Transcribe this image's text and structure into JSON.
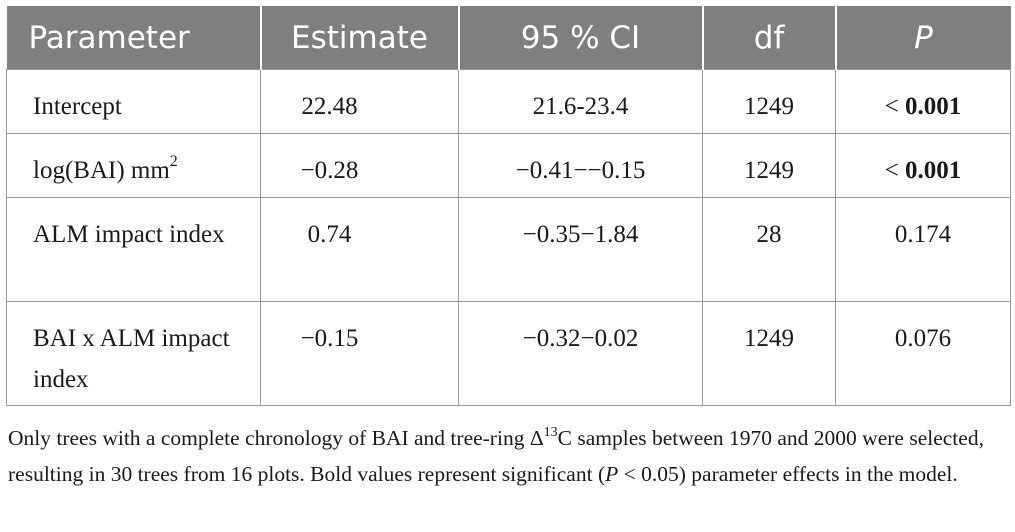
{
  "table": {
    "headers": [
      "Parameter",
      "Estimate",
      "95 % CI",
      "df",
      "P"
    ],
    "rows": [
      {
        "parameter": "Intercept",
        "estimate": "22.48",
        "ci": "21.6‐23.4",
        "df": "1249",
        "p_prefix": "< ",
        "p_value": "0.001",
        "p_bold": true
      },
      {
        "parameter_main": "log(BAI) mm",
        "parameter_sup": "2",
        "estimate": "−0.28",
        "ci": "−0.41−−0.15",
        "df": "1249",
        "p_prefix": "< ",
        "p_value": "0.001",
        "p_bold": true
      },
      {
        "parameter": "ALM impact index",
        "estimate": "0.74",
        "ci": "−0.35−1.84",
        "df": "28",
        "p_value": "0.174",
        "p_bold": false
      },
      {
        "parameter": "BAI x ALM impact index",
        "estimate": "−0.15",
        "ci": "−0.32−0.02",
        "df": "1249",
        "p_value": "0.076",
        "p_bold": false
      }
    ]
  },
  "note": {
    "part1": "Only trees with a complete chronology of BAI and tree-ring Δ",
    "sup": "13",
    "part2": "C samples between 1970 and 2000 were selected, resulting in 30 trees from 16 plots. Bold values represent significant (",
    "italic": "P",
    "part3": " < 0.05) parameter effects in the model."
  }
}
